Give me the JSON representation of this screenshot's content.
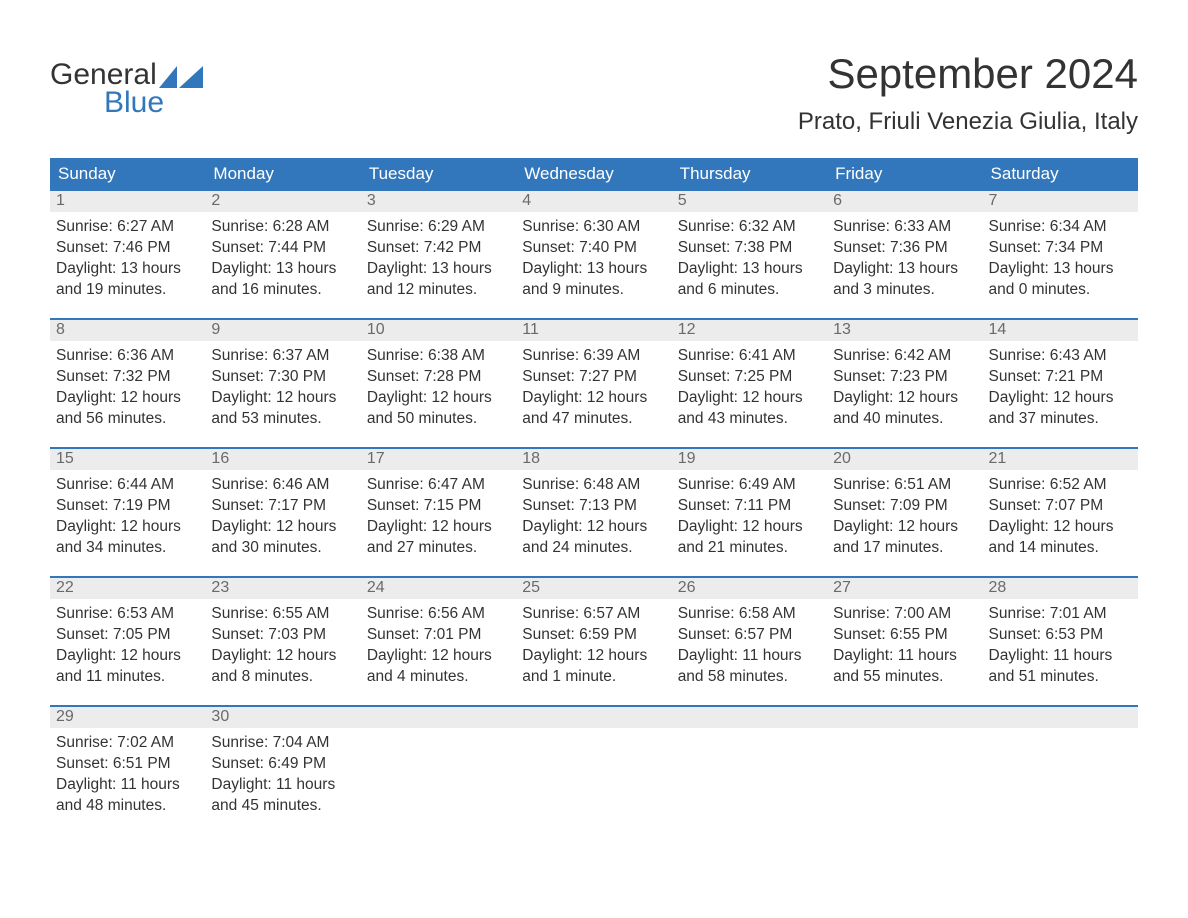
{
  "logo": {
    "line1": "General",
    "line2": "Blue"
  },
  "title": "September 2024",
  "location": "Prato, Friuli Venezia Giulia, Italy",
  "colors": {
    "header_bg": "#3277bc",
    "header_text": "#ffffff",
    "daynum_bg": "#ececec",
    "daynum_text": "#6a6a6a",
    "rule": "#3277bc",
    "body_text": "#333333",
    "logo_blue": "#3277bc",
    "page_bg": "#ffffff"
  },
  "typography": {
    "family": "Arial",
    "title_size_pt": 32,
    "location_size_pt": 18,
    "dayname_size_pt": 13,
    "body_size_pt": 12
  },
  "day_names": [
    "Sunday",
    "Monday",
    "Tuesday",
    "Wednesday",
    "Thursday",
    "Friday",
    "Saturday"
  ],
  "weeks": [
    [
      {
        "n": "1",
        "sunrise": "Sunrise: 6:27 AM",
        "sunset": "Sunset: 7:46 PM",
        "d1": "Daylight: 13 hours",
        "d2": "and 19 minutes."
      },
      {
        "n": "2",
        "sunrise": "Sunrise: 6:28 AM",
        "sunset": "Sunset: 7:44 PM",
        "d1": "Daylight: 13 hours",
        "d2": "and 16 minutes."
      },
      {
        "n": "3",
        "sunrise": "Sunrise: 6:29 AM",
        "sunset": "Sunset: 7:42 PM",
        "d1": "Daylight: 13 hours",
        "d2": "and 12 minutes."
      },
      {
        "n": "4",
        "sunrise": "Sunrise: 6:30 AM",
        "sunset": "Sunset: 7:40 PM",
        "d1": "Daylight: 13 hours",
        "d2": "and 9 minutes."
      },
      {
        "n": "5",
        "sunrise": "Sunrise: 6:32 AM",
        "sunset": "Sunset: 7:38 PM",
        "d1": "Daylight: 13 hours",
        "d2": "and 6 minutes."
      },
      {
        "n": "6",
        "sunrise": "Sunrise: 6:33 AM",
        "sunset": "Sunset: 7:36 PM",
        "d1": "Daylight: 13 hours",
        "d2": "and 3 minutes."
      },
      {
        "n": "7",
        "sunrise": "Sunrise: 6:34 AM",
        "sunset": "Sunset: 7:34 PM",
        "d1": "Daylight: 13 hours",
        "d2": "and 0 minutes."
      }
    ],
    [
      {
        "n": "8",
        "sunrise": "Sunrise: 6:36 AM",
        "sunset": "Sunset: 7:32 PM",
        "d1": "Daylight: 12 hours",
        "d2": "and 56 minutes."
      },
      {
        "n": "9",
        "sunrise": "Sunrise: 6:37 AM",
        "sunset": "Sunset: 7:30 PM",
        "d1": "Daylight: 12 hours",
        "d2": "and 53 minutes."
      },
      {
        "n": "10",
        "sunrise": "Sunrise: 6:38 AM",
        "sunset": "Sunset: 7:28 PM",
        "d1": "Daylight: 12 hours",
        "d2": "and 50 minutes."
      },
      {
        "n": "11",
        "sunrise": "Sunrise: 6:39 AM",
        "sunset": "Sunset: 7:27 PM",
        "d1": "Daylight: 12 hours",
        "d2": "and 47 minutes."
      },
      {
        "n": "12",
        "sunrise": "Sunrise: 6:41 AM",
        "sunset": "Sunset: 7:25 PM",
        "d1": "Daylight: 12 hours",
        "d2": "and 43 minutes."
      },
      {
        "n": "13",
        "sunrise": "Sunrise: 6:42 AM",
        "sunset": "Sunset: 7:23 PM",
        "d1": "Daylight: 12 hours",
        "d2": "and 40 minutes."
      },
      {
        "n": "14",
        "sunrise": "Sunrise: 6:43 AM",
        "sunset": "Sunset: 7:21 PM",
        "d1": "Daylight: 12 hours",
        "d2": "and 37 minutes."
      }
    ],
    [
      {
        "n": "15",
        "sunrise": "Sunrise: 6:44 AM",
        "sunset": "Sunset: 7:19 PM",
        "d1": "Daylight: 12 hours",
        "d2": "and 34 minutes."
      },
      {
        "n": "16",
        "sunrise": "Sunrise: 6:46 AM",
        "sunset": "Sunset: 7:17 PM",
        "d1": "Daylight: 12 hours",
        "d2": "and 30 minutes."
      },
      {
        "n": "17",
        "sunrise": "Sunrise: 6:47 AM",
        "sunset": "Sunset: 7:15 PM",
        "d1": "Daylight: 12 hours",
        "d2": "and 27 minutes."
      },
      {
        "n": "18",
        "sunrise": "Sunrise: 6:48 AM",
        "sunset": "Sunset: 7:13 PM",
        "d1": "Daylight: 12 hours",
        "d2": "and 24 minutes."
      },
      {
        "n": "19",
        "sunrise": "Sunrise: 6:49 AM",
        "sunset": "Sunset: 7:11 PM",
        "d1": "Daylight: 12 hours",
        "d2": "and 21 minutes."
      },
      {
        "n": "20",
        "sunrise": "Sunrise: 6:51 AM",
        "sunset": "Sunset: 7:09 PM",
        "d1": "Daylight: 12 hours",
        "d2": "and 17 minutes."
      },
      {
        "n": "21",
        "sunrise": "Sunrise: 6:52 AM",
        "sunset": "Sunset: 7:07 PM",
        "d1": "Daylight: 12 hours",
        "d2": "and 14 minutes."
      }
    ],
    [
      {
        "n": "22",
        "sunrise": "Sunrise: 6:53 AM",
        "sunset": "Sunset: 7:05 PM",
        "d1": "Daylight: 12 hours",
        "d2": "and 11 minutes."
      },
      {
        "n": "23",
        "sunrise": "Sunrise: 6:55 AM",
        "sunset": "Sunset: 7:03 PM",
        "d1": "Daylight: 12 hours",
        "d2": "and 8 minutes."
      },
      {
        "n": "24",
        "sunrise": "Sunrise: 6:56 AM",
        "sunset": "Sunset: 7:01 PM",
        "d1": "Daylight: 12 hours",
        "d2": "and 4 minutes."
      },
      {
        "n": "25",
        "sunrise": "Sunrise: 6:57 AM",
        "sunset": "Sunset: 6:59 PM",
        "d1": "Daylight: 12 hours",
        "d2": "and 1 minute."
      },
      {
        "n": "26",
        "sunrise": "Sunrise: 6:58 AM",
        "sunset": "Sunset: 6:57 PM",
        "d1": "Daylight: 11 hours",
        "d2": "and 58 minutes."
      },
      {
        "n": "27",
        "sunrise": "Sunrise: 7:00 AM",
        "sunset": "Sunset: 6:55 PM",
        "d1": "Daylight: 11 hours",
        "d2": "and 55 minutes."
      },
      {
        "n": "28",
        "sunrise": "Sunrise: 7:01 AM",
        "sunset": "Sunset: 6:53 PM",
        "d1": "Daylight: 11 hours",
        "d2": "and 51 minutes."
      }
    ],
    [
      {
        "n": "29",
        "sunrise": "Sunrise: 7:02 AM",
        "sunset": "Sunset: 6:51 PM",
        "d1": "Daylight: 11 hours",
        "d2": "and 48 minutes."
      },
      {
        "n": "30",
        "sunrise": "Sunrise: 7:04 AM",
        "sunset": "Sunset: 6:49 PM",
        "d1": "Daylight: 11 hours",
        "d2": "and 45 minutes."
      },
      {
        "empty": true
      },
      {
        "empty": true
      },
      {
        "empty": true
      },
      {
        "empty": true
      },
      {
        "empty": true
      }
    ]
  ]
}
